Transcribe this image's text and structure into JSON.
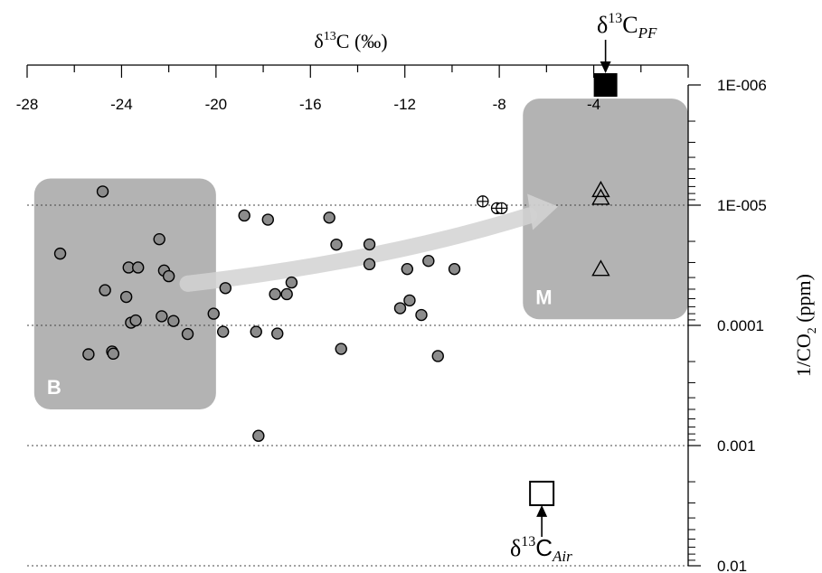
{
  "chart_data": {
    "type": "scatter",
    "title": "",
    "xlabel": {
      "prefix": "δ",
      "sup": "13",
      "main": "C (‰)"
    },
    "ylabel": {
      "main": "1/CO",
      "sub": "2",
      "suffix": " (ppm)"
    },
    "xlim": [
      -28,
      0
    ],
    "ylim": [
      1e-06,
      0.01
    ],
    "y_scale": "log-reversed",
    "x_axis_position": "top",
    "y_axis_position": "right",
    "x_ticks": [
      -28,
      -24,
      -20,
      -16,
      -12,
      -8,
      -4
    ],
    "x_tick_labels": [
      "-28",
      "-24",
      "-20",
      "-16",
      "-12",
      "-8",
      "-4"
    ],
    "y_ticks": [
      1e-06,
      1e-05,
      0.0001,
      0.001,
      0.01
    ],
    "y_tick_labels": [
      "1E-006",
      "1E-005",
      "0.0001",
      "0.001",
      "0.01"
    ],
    "grid": "dotted horizontal lines at 1E-005, 0.0001, 0.001, 0.01",
    "regions": [
      {
        "label": "B",
        "x": [
          -27.7,
          -20
        ],
        "y": [
          6e-06,
          0.0005
        ]
      },
      {
        "label": "M",
        "x": [
          -7,
          0
        ],
        "y": [
          1.3e-06,
          8.9e-05
        ]
      }
    ],
    "series": [
      {
        "marker": "gray-circle",
        "points": [
          [
            -26.6,
            2.53e-05
          ],
          [
            -24.8,
            7.7e-06
          ],
          [
            -24.7,
            5.1e-05
          ],
          [
            -23.8,
            5.8e-05
          ],
          [
            -23.7,
            3.3e-05
          ],
          [
            -23.3,
            3.3e-05
          ],
          [
            -22.4,
            1.92e-05
          ],
          [
            -22.2,
            3.5e-05
          ],
          [
            -22.0,
            3.9e-05
          ],
          [
            -23.6,
            9.5e-05
          ],
          [
            -23.4,
            9.1e-05
          ],
          [
            -22.3,
            8.4e-05
          ],
          [
            -21.8,
            9.2e-05
          ],
          [
            -21.2,
            0.000118
          ],
          [
            -20.1,
            8e-05
          ],
          [
            -19.7,
            0.000113
          ],
          [
            -19.6,
            4.9e-05
          ],
          [
            -25.4,
            0.000174
          ],
          [
            -24.4,
            0.000165
          ],
          [
            -24.35,
            0.000172
          ],
          [
            -18.8,
            1.22e-05
          ],
          [
            -17.8,
            1.32e-05
          ],
          [
            -18.3,
            0.000113
          ],
          [
            -17.5,
            5.5e-05
          ],
          [
            -17.4,
            0.000117
          ],
          [
            -17.0,
            5.5e-05
          ],
          [
            -16.8,
            4.4e-05
          ],
          [
            -18.2,
            0.00083
          ],
          [
            -15.2,
            1.27e-05
          ],
          [
            -14.9,
            2.13e-05
          ],
          [
            -14.7,
            0.000157
          ],
          [
            -13.5,
            2.12e-05
          ],
          [
            -13.5,
            3.1e-05
          ],
          [
            -12.2,
            7.2e-05
          ],
          [
            -11.9,
            3.4e-05
          ],
          [
            -11.8,
            6.2e-05
          ],
          [
            -11.3,
            8.2e-05
          ],
          [
            -11.0,
            2.91e-05
          ],
          [
            -10.6,
            0.00018
          ],
          [
            -9.9,
            3.4e-05
          ]
        ]
      },
      {
        "marker": "crossed-circle",
        "points": [
          [
            -8.7,
            9.3e-06
          ],
          [
            -8.1,
            1.06e-05
          ],
          [
            -7.9,
            1.06e-05
          ]
        ]
      },
      {
        "marker": "open-triangle",
        "points": [
          [
            -3.7,
            7.5e-06
          ],
          [
            -3.7,
            8.7e-06
          ],
          [
            -3.7,
            3.4e-05
          ]
        ]
      },
      {
        "marker": "filled-square",
        "points": [
          [
            -3.5,
            1e-06
          ]
        ]
      },
      {
        "marker": "open-square",
        "points": [
          [
            -6.2,
            0.0025
          ]
        ]
      }
    ],
    "arrow": {
      "from": [
        -21.2,
        4.5e-05
      ],
      "to": [
        -6.2,
        1.1e-05
      ],
      "style": "gray curved"
    },
    "annotations": [
      {
        "prefix": "δ",
        "sup": "13",
        "main": "C",
        "sub": "PF",
        "target": [
          -3.5,
          1e-06
        ]
      },
      {
        "prefix": "δ",
        "sup": "13",
        "main": "C",
        "sub": "Air",
        "target": [
          -6.2,
          0.0025
        ]
      }
    ],
    "colors": {
      "circle_fill": "#8c8c8c",
      "region_fill": "#b3b3b3",
      "arrow": "#d2d2d2"
    }
  }
}
